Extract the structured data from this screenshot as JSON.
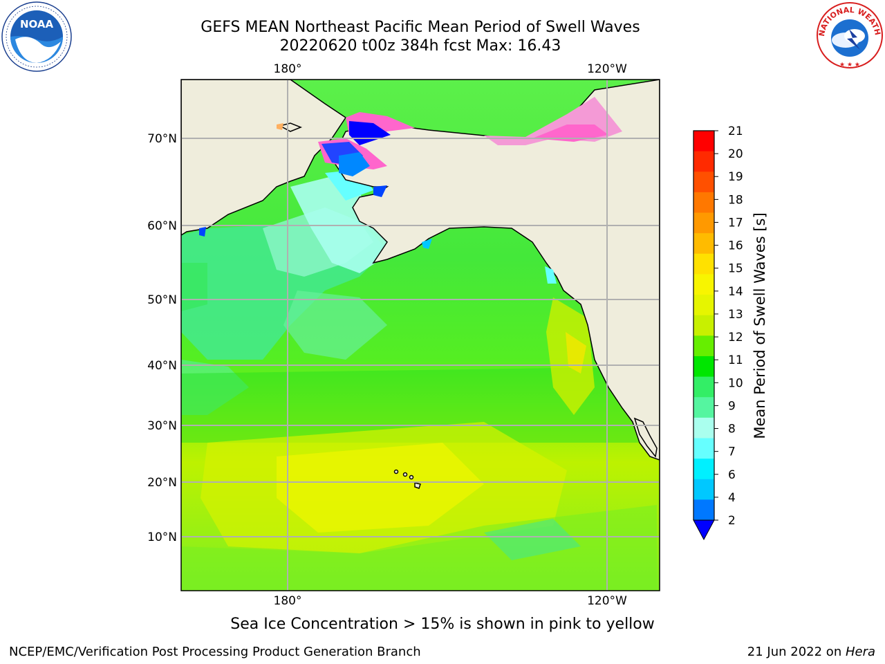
{
  "title": {
    "line1": "GEFS MEAN Northeast Pacific Mean Period of Swell Waves",
    "line2": "20220620 t00z 384h fcst   Max: 16.43"
  },
  "map": {
    "lon_labels_top": [
      "180°",
      "120°W"
    ],
    "lon_labels_bottom": [
      "180°",
      "120°W"
    ],
    "lat_labels": [
      "70°N",
      "60°N",
      "50°N",
      "40°N",
      "30°N",
      "20°N",
      "10°N"
    ],
    "gridlines": true,
    "colors": {
      "land": "#efeddc",
      "ocean_default": "#55ee22",
      "coast": "#000000",
      "grid": "#b0b0b0"
    }
  },
  "colorbar": {
    "label": "Mean Period of Swell Waves [s]",
    "ticks": [
      "21",
      "20",
      "19",
      "18",
      "17",
      "16",
      "15",
      "14",
      "13",
      "12",
      "11",
      "10",
      "9",
      "8",
      "7",
      "6",
      "4",
      "2"
    ],
    "colors_top_to_bottom": [
      "#ff0000",
      "#ff2a00",
      "#ff5000",
      "#ff7800",
      "#ff9900",
      "#ffbb00",
      "#ffe100",
      "#f8f500",
      "#e6f500",
      "#c8f000",
      "#66ee00",
      "#00e600",
      "#33ee66",
      "#55f5a0",
      "#aaffee",
      "#66ffff",
      "#00f0ff",
      "#00c8ff",
      "#0078ff"
    ],
    "extend_color": "#0000ff"
  },
  "footnote": "Sea Ice Concentration > 15% is shown in pink to yellow",
  "credit_left": "NCEP/EMC/Verification Post Processing Product Generation Branch",
  "credit_right_prefix": "21 Jun 2022 on ",
  "credit_right_machine": "Hera",
  "logos": {
    "left": "noaa-logo",
    "right": "nws-logo",
    "right_text": "NATIONAL WEATHER SERVICE",
    "left_text": "NOAA"
  }
}
